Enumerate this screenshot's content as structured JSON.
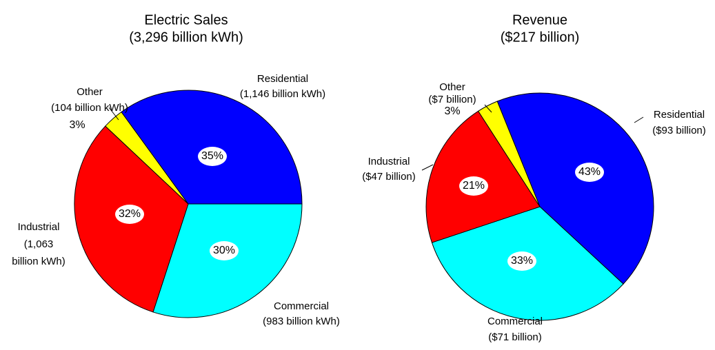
{
  "chart_data": [
    {
      "type": "pie",
      "title": "Electric Sales",
      "subtitle": "(3,296 billion kWh)",
      "categories": [
        "Commercial",
        "Industrial",
        "Other",
        "Residential"
      ],
      "details": [
        [
          "(983 billion kWh)"
        ],
        [
          "(1,063",
          "billion kWh)"
        ],
        [
          "(104 billion kWh)"
        ],
        [
          "(1,146 billion kWh)"
        ]
      ],
      "values": [
        30,
        32,
        3,
        35
      ],
      "value_labels": [
        "30%",
        "32%",
        "3%",
        "35%"
      ],
      "colors": [
        "#00ffff",
        "#ff0000",
        "#ffff00",
        "#0000ff"
      ],
      "startangle": 0
    },
    {
      "type": "pie",
      "title": "Revenue",
      "subtitle": "($217 billion)",
      "categories": [
        "Residential",
        "Commercial",
        "Industrial",
        "Other"
      ],
      "details": [
        [
          "($93 billion)"
        ],
        [
          "($71 billion)"
        ],
        [
          "($47 billion)"
        ],
        [
          "($7 billion)"
        ]
      ],
      "values": [
        43,
        33,
        21,
        3
      ],
      "value_labels": [
        "43%",
        "33%",
        "21%",
        "3%"
      ],
      "colors": [
        "#0000ff",
        "#00ffff",
        "#ff0000",
        "#ffff00"
      ],
      "startangle": 248
    }
  ]
}
